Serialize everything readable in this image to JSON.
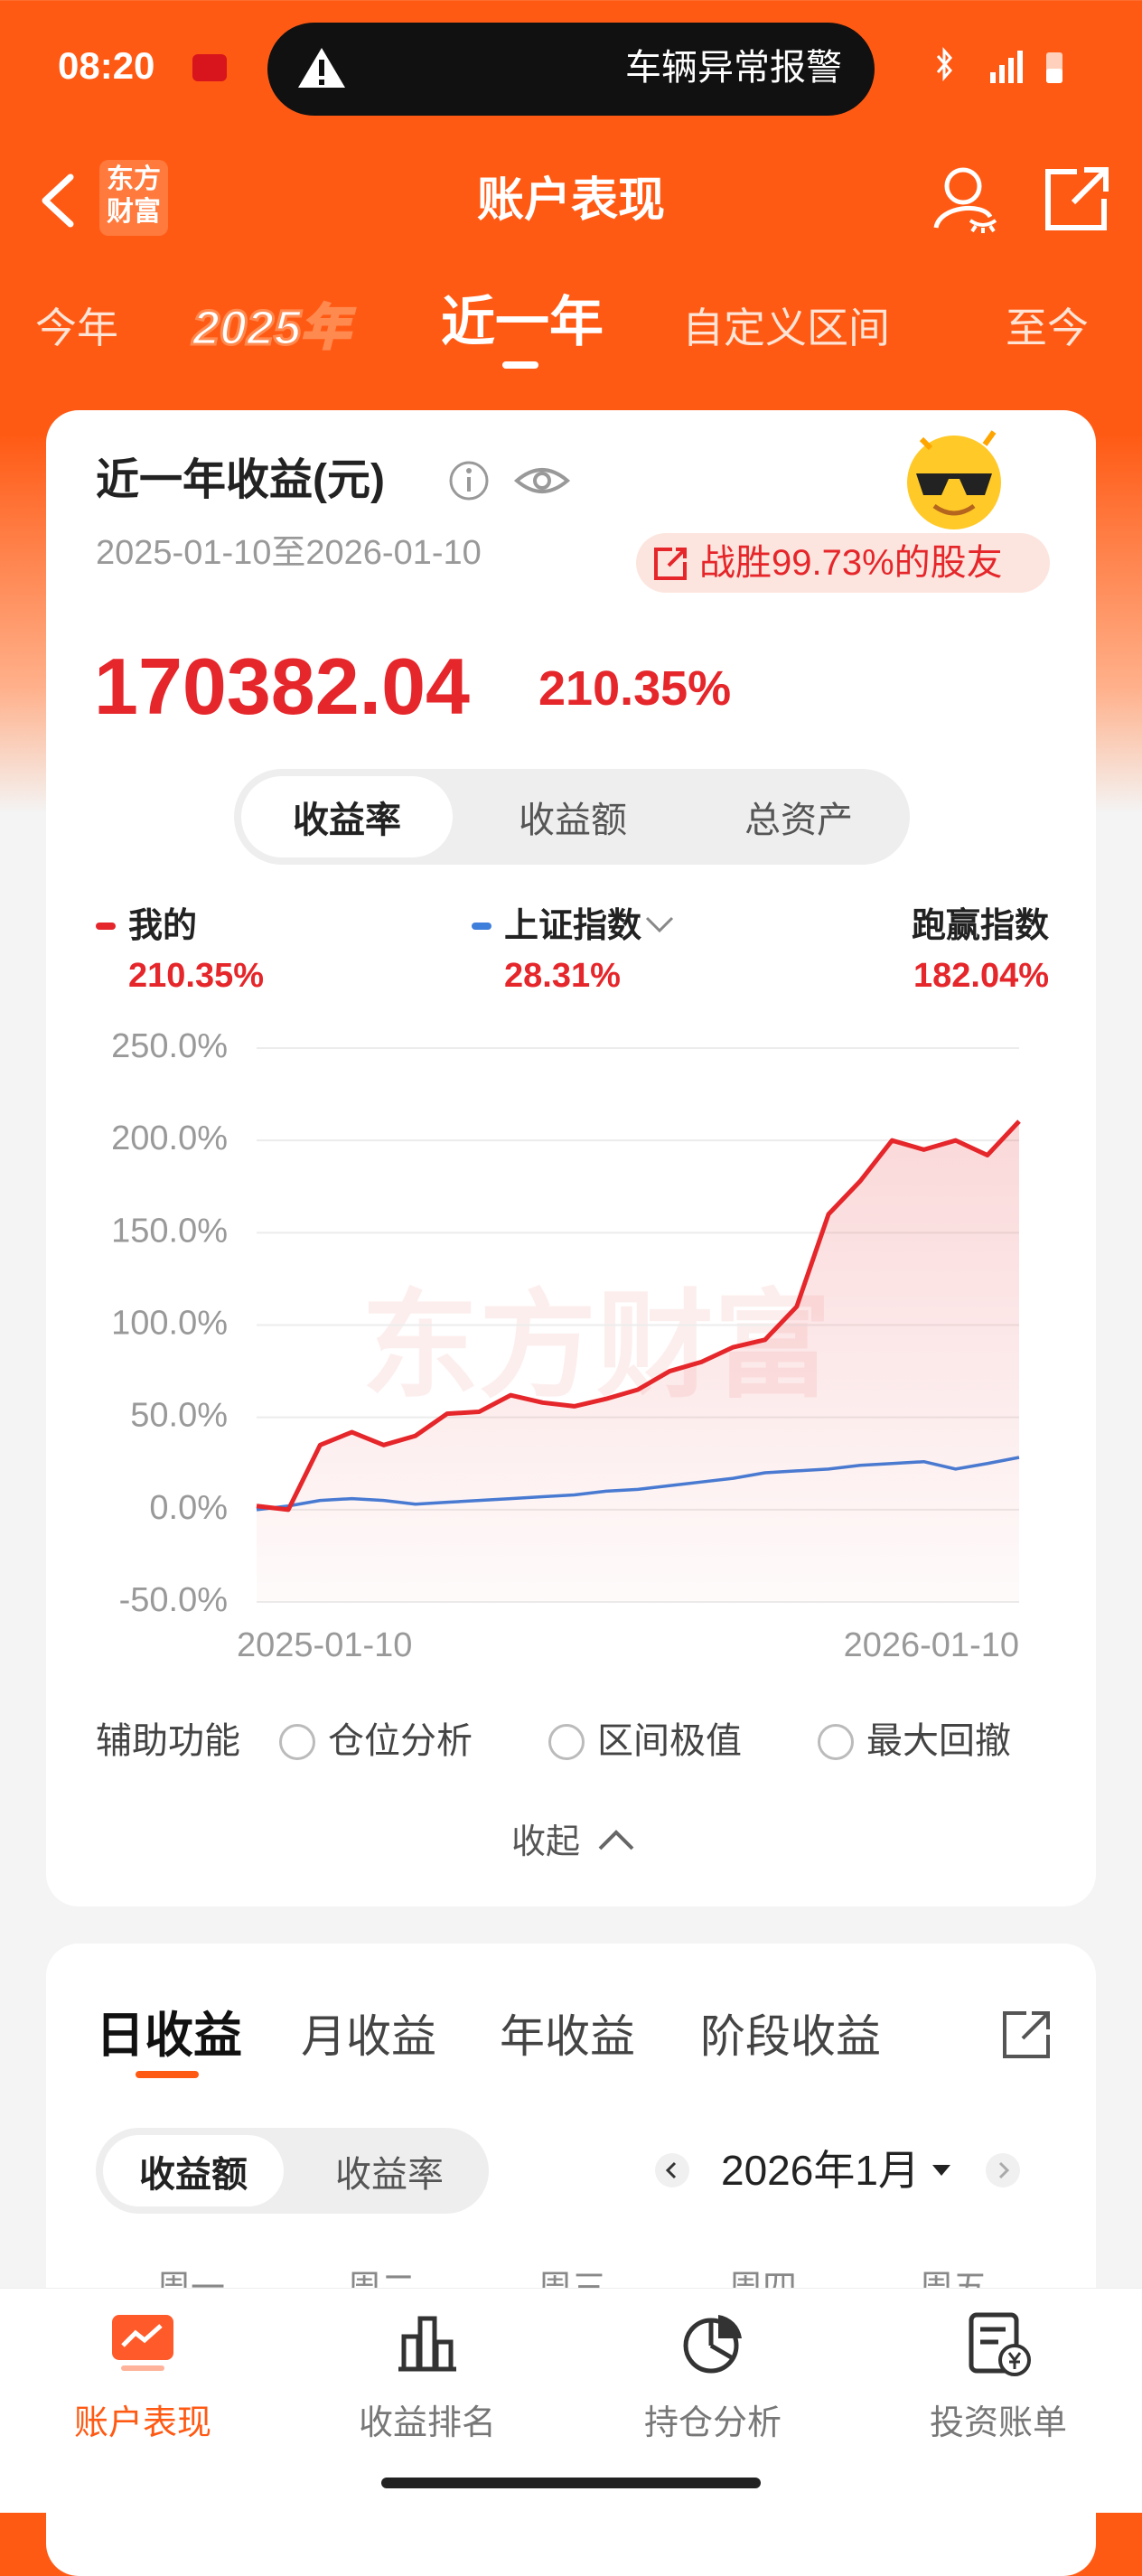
{
  "status_bar": {
    "time": "08:20",
    "alert": "车辆异常报警"
  },
  "header": {
    "logo_lines": [
      "东方",
      "财富"
    ],
    "title": "账户表现"
  },
  "period_tabs": {
    "items": [
      "今年",
      "2025年",
      "近一年",
      "自定义区间",
      "至今"
    ],
    "selected": 2
  },
  "summary_card": {
    "title": "近一年收益(元)",
    "date_range": "2025-01-10至2026-01-10",
    "badge": "战胜99.73%的股友",
    "profit": "170382.04",
    "rate": "210.35%",
    "toggles": {
      "items": [
        "收益率",
        "收益额",
        "总资产"
      ],
      "selected": 0
    },
    "legend_values": [
      "210.35%",
      "28.31%"
    ],
    "excess_name": "跑赢指数",
    "excess_value": "182.04%",
    "watermark": "东方财富",
    "aux_label": "辅助功能",
    "aux_options": [
      "仓位分析",
      "区间极值",
      "最大回撤"
    ],
    "collapse": "收起"
  },
  "chart_data": {
    "type": "line",
    "categories": [
      "2025-01-10",
      null,
      null,
      null,
      null,
      null,
      null,
      null,
      null,
      null,
      null,
      null,
      null,
      null,
      null,
      null,
      null,
      null,
      null,
      null,
      null,
      null,
      null,
      null,
      "2026-01-10"
    ],
    "series": [
      {
        "name": "我的",
        "color": "#e5262a",
        "values": [
          2,
          0,
          35,
          42,
          35,
          40,
          52,
          53,
          62,
          58,
          56,
          60,
          65,
          75,
          80,
          88,
          92,
          110,
          160,
          178,
          200,
          195,
          200,
          192,
          210.35
        ]
      },
      {
        "name": "上证指数",
        "color": "#3f7fdc",
        "values": [
          0,
          2,
          5,
          6,
          5,
          3,
          4,
          5,
          6,
          7,
          8,
          10,
          11,
          13,
          15,
          17,
          20,
          21,
          22,
          24,
          25,
          26,
          22,
          25,
          28.31
        ]
      }
    ],
    "ylim": [
      -50,
      250
    ],
    "yticks": [
      {
        "value": -50,
        "label": "-50.0%"
      },
      {
        "value": 0,
        "label": "0.0%"
      },
      {
        "value": 50,
        "label": "50.0%"
      },
      {
        "value": 100,
        "label": "100.0%"
      },
      {
        "value": 150,
        "label": "150.0%"
      },
      {
        "value": 200,
        "label": "200.0%"
      },
      {
        "value": 250,
        "label": "250.0%"
      }
    ],
    "grid": true
  },
  "detail_card": {
    "tabs": {
      "items": [
        "日收益",
        "月收益",
        "年收益",
        "阶段收益"
      ],
      "selected": 0
    },
    "toggles": {
      "items": [
        "收益额",
        "收益率"
      ],
      "selected": 0
    },
    "month": "2026年1月",
    "weekdays": [
      "周一",
      "周二",
      "周三",
      "周四",
      "周五"
    ]
  },
  "bottom_nav": {
    "items": [
      "账户表现",
      "收益排名",
      "持仓分析",
      "投资账单"
    ],
    "selected": 0
  }
}
